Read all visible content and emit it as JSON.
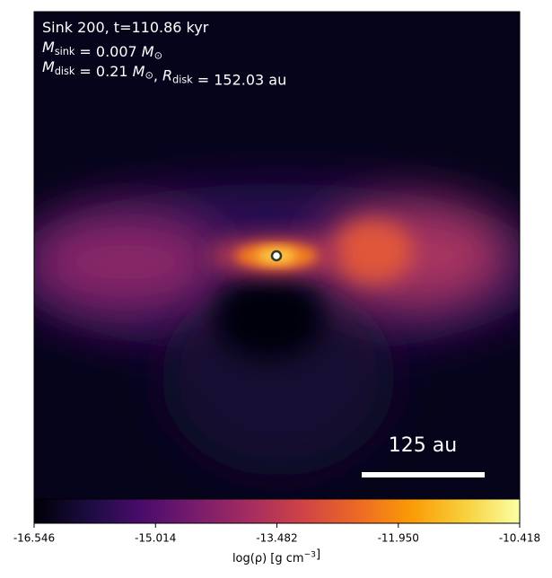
{
  "chart_data": {
    "type": "image",
    "annotations": [
      [
        {
          "text": "Sink 200, t=110.86 kyr"
        }
      ],
      [
        {
          "math": "M"
        },
        {
          "sub": "sink"
        },
        {
          "text": " = 0.007 "
        },
        {
          "math": "M"
        },
        {
          "sub": "⊙"
        }
      ],
      [
        {
          "math": "M"
        },
        {
          "sub": "disk"
        },
        {
          "text": " = 0.21 "
        },
        {
          "math": "M"
        },
        {
          "sub": "⊙"
        },
        {
          "text": ", "
        },
        {
          "math": "R"
        },
        {
          "sub": "disk"
        },
        {
          "text": " = 152.03 au"
        }
      ]
    ],
    "scale_bar_label": "125 au",
    "colorbar": {
      "label": [
        {
          "text": "log(ρ) [g cm"
        },
        {
          "sup": "−3"
        },
        {
          "text": "]"
        }
      ],
      "lim": [
        -16.546,
        -10.418
      ],
      "ticks": [
        -16.546,
        -15.014,
        -13.482,
        {
          "value": -11.95,
          "label": "-11.950"
        },
        -10.418
      ],
      "colors": [
        "#000004",
        "#1b0c41",
        "#4a0c6b",
        "#781c6d",
        "#a52c60",
        "#cf4446",
        "#ed6925",
        "#fb9b06",
        "#f7d13d",
        "#fcffa4"
      ]
    }
  }
}
